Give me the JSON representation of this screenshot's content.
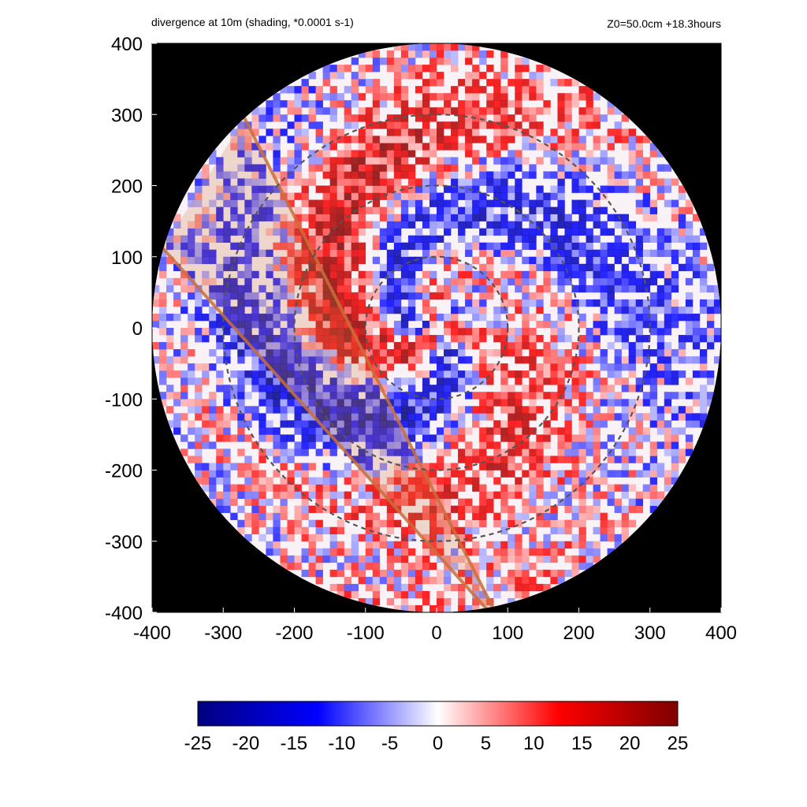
{
  "title_left": "divergence at 10m (shading, *0.0001 s-1)",
  "title_right": "Z0=50.0cm  +18.3hours",
  "chart_data": {
    "type": "heatmap",
    "title": "divergence at 10m (shading, *0.0001 s-1)",
    "subtitle": "Z0=50.0cm  +18.3hours",
    "xlim": [
      -400,
      400
    ],
    "ylim": [
      -400,
      400
    ],
    "x_ticks": [
      "-400",
      "-300",
      "-200",
      "-100",
      "0",
      "100",
      "200",
      "300",
      "400"
    ],
    "y_ticks": [
      "400",
      "300",
      "200",
      "100",
      "0",
      "-100",
      "-200",
      "-300",
      "-400"
    ],
    "x_tick_values": [
      -400,
      -300,
      -200,
      -100,
      0,
      100,
      200,
      300,
      400
    ],
    "y_tick_values": [
      400,
      300,
      200,
      100,
      0,
      -100,
      -200,
      -300,
      -400
    ],
    "domain_radius": 400,
    "background_outside_domain": "#000000",
    "range_rings": [
      100,
      200,
      300
    ],
    "range_ring_color": "#555555",
    "highlighted_sector": {
      "color": "#c8703a",
      "edge1": [
        [
          -270,
          295
        ],
        [
          80,
          -395
        ]
      ],
      "edge2": [
        [
          -385,
          112
        ],
        [
          70,
          -395
        ]
      ]
    },
    "colorbar": {
      "min": -25,
      "max": 25,
      "tick_labels": [
        "-25",
        "-20",
        "-15",
        "-10",
        "-5",
        "0",
        "5",
        "10",
        "15",
        "20",
        "25"
      ],
      "tick_values": [
        -25,
        -20,
        -15,
        -10,
        -5,
        0,
        5,
        10,
        15,
        20,
        25
      ],
      "colors": [
        "#00007f",
        "#0000ff",
        "#ffffff",
        "#ff0000",
        "#7f0000"
      ]
    }
  }
}
